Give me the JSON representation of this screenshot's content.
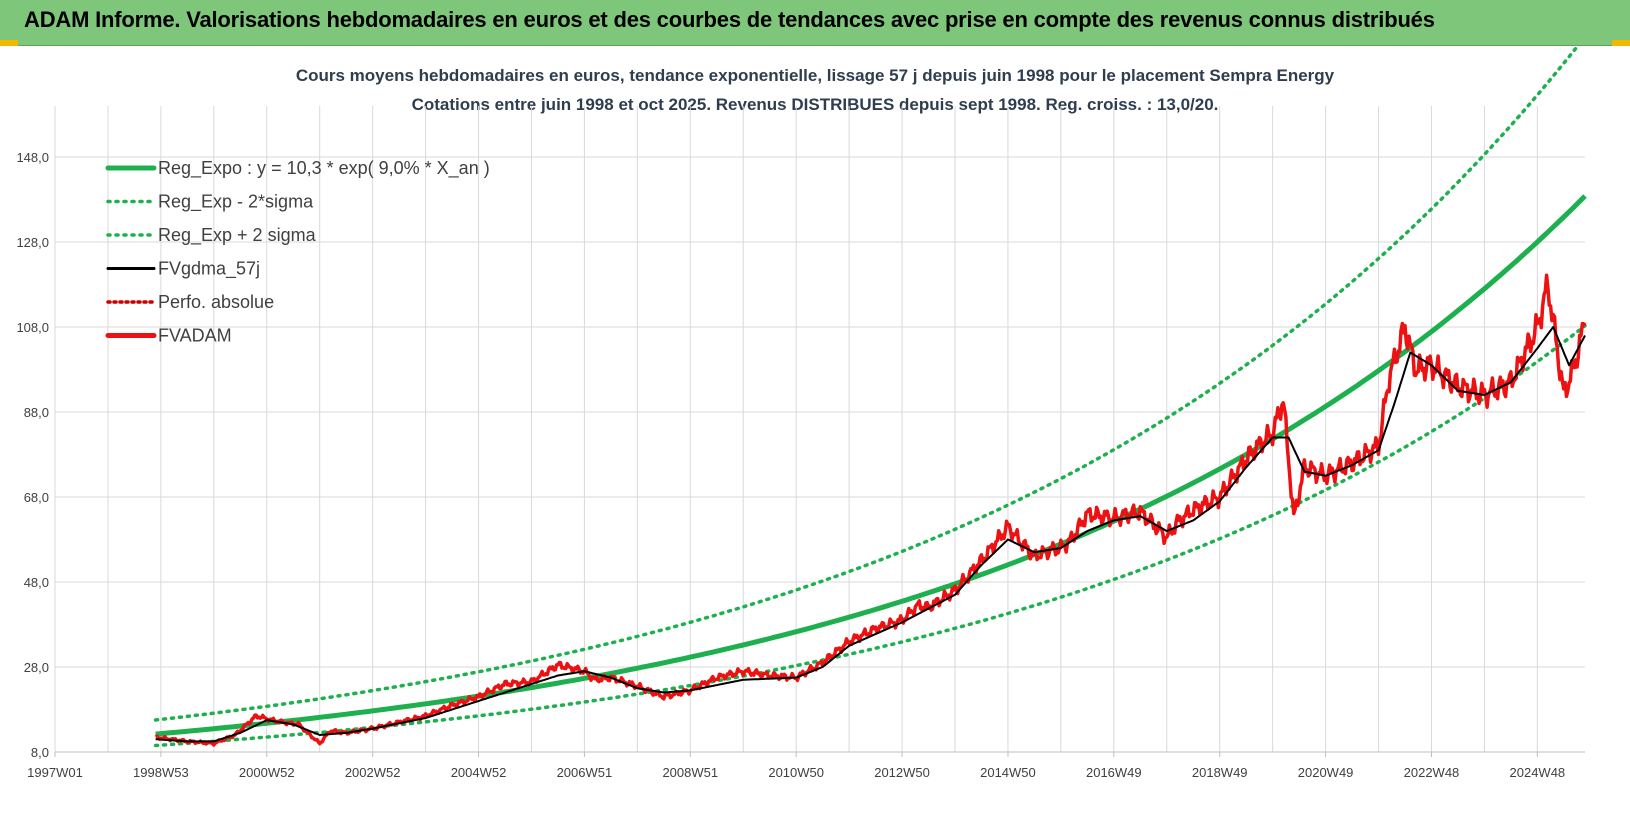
{
  "banner": {
    "title": "ADAM Informe. Valorisations hebdomadaires en euros et des courbes de tendances avec prise en compte des revenus connus distribués"
  },
  "colors": {
    "banner_bg": "#7ec77a",
    "trend": "#1eb04f",
    "price": "#ee1111",
    "smooth": "#000000",
    "perfo": "#cc0000",
    "grid": "#d9d9d9"
  },
  "chart_data": {
    "type": "line",
    "title": "Cours moyens hebdomadaires en euros, tendance exponentielle, lissage 57 j depuis juin 1998 pour le placement Sempra Energy",
    "subtitle": "Cotations entre juin 1998 et oct 2025. Revenus DISTRIBUES depuis sept 1998. Reg. croiss. : 13,0/20.",
    "xlabel": "",
    "ylabel": "",
    "x_unit": "years since 1997W01",
    "xlim": [
      0,
      28.9
    ],
    "ylim": [
      8,
      160
    ],
    "y_ticks": [
      "8,0",
      "28,0",
      "48,0",
      "68,0",
      "88,0",
      "108,0",
      "128,0",
      "148,0"
    ],
    "y_tick_values": [
      8,
      28,
      48,
      68,
      88,
      108,
      128,
      148
    ],
    "x_ticks": [
      "1997W01",
      "1998W53",
      "2000W52",
      "2002W52",
      "2004W52",
      "2006W51",
      "2008W51",
      "2010W50",
      "2012W50",
      "2014W50",
      "2016W49",
      "2018W49",
      "2020W49",
      "2022W48",
      "2024W48"
    ],
    "x_tick_values": [
      0,
      2,
      4,
      6,
      8,
      10,
      12,
      14,
      16,
      18,
      20,
      22,
      24,
      26,
      28
    ],
    "legend": {
      "position": "top-left",
      "entries": [
        {
          "label": "Reg_Expo : y = 10,3 * exp( 9,0% *  X_an )",
          "style": "solid-thick",
          "color": "#1eb04f"
        },
        {
          "label": "Reg_Exp - 2*sigma",
          "style": "dotted",
          "color": "#1eb04f"
        },
        {
          "label": "Reg_Exp + 2 sigma",
          "style": "dotted",
          "color": "#1eb04f"
        },
        {
          "label": "FVgdma_57j",
          "style": "solid",
          "color": "#000000"
        },
        {
          "label": "Perfo. absolue",
          "style": "dotted",
          "color": "#cc0000"
        },
        {
          "label": "FVADAM",
          "style": "solid-thick",
          "color": "#ee1111"
        }
      ]
    },
    "regression": {
      "a": 10.3,
      "rate": 0.09,
      "x_start": 1.9,
      "x_end": 28.9
    },
    "sigma_bands": {
      "lower_factor": 0.78,
      "upper_factor": 1.27
    },
    "series": [
      {
        "name": "FVADAM",
        "x": [
          1.9,
          2.2,
          2.5,
          3.0,
          3.4,
          3.8,
          4.1,
          4.3,
          4.6,
          5.0,
          5.2,
          5.5,
          6.0,
          6.5,
          7.0,
          7.5,
          8.0,
          8.5,
          9.0,
          9.5,
          10.0,
          10.2,
          10.5,
          11.0,
          11.2,
          11.5,
          12.0,
          12.5,
          13.0,
          13.5,
          14.0,
          14.5,
          15.0,
          15.5,
          16.0,
          16.3,
          16.5,
          17.0,
          17.5,
          18.0,
          18.2,
          18.5,
          18.8,
          19.0,
          19.2,
          19.5,
          20.0,
          20.5,
          21.0,
          21.2,
          21.5,
          22.0,
          22.5,
          22.8,
          23.0,
          23.2,
          23.4,
          23.6,
          24.0,
          24.5,
          25.0,
          25.2,
          25.5,
          25.7,
          26.0,
          26.5,
          27.0,
          27.5,
          28.0,
          28.2,
          28.5,
          28.7,
          28.9
        ],
        "values": [
          11.5,
          11.0,
          10.5,
          10.0,
          12.0,
          16.5,
          15.5,
          15.0,
          14.5,
          10.0,
          13.0,
          12.5,
          13.5,
          15.0,
          16.5,
          19.0,
          21.0,
          24.0,
          24.5,
          28.5,
          27.0,
          25.0,
          25.5,
          23.5,
          22.5,
          21.0,
          22.5,
          25.5,
          27.0,
          26.0,
          25.5,
          29.0,
          34.0,
          37.0,
          39.0,
          42.5,
          42.0,
          46.0,
          53.0,
          61.0,
          58.0,
          54.0,
          55.5,
          56.0,
          58.0,
          64.0,
          63.0,
          64.5,
          58.5,
          62.0,
          65.0,
          68.0,
          77.0,
          81.0,
          83.0,
          91.0,
          63.0,
          75.0,
          73.0,
          76.0,
          80.0,
          96.0,
          108.0,
          98.0,
          99.0,
          94.0,
          92.0,
          95.0,
          108.0,
          118.0,
          92.0,
          99.0,
          109.0
        ]
      },
      {
        "name": "FVgdma_57j",
        "x": [
          1.9,
          2.5,
          3.0,
          3.5,
          4.0,
          4.5,
          5.0,
          5.5,
          6.0,
          7.0,
          8.0,
          9.0,
          9.5,
          10.0,
          10.5,
          11.0,
          11.5,
          12.0,
          13.0,
          14.0,
          14.5,
          15.0,
          16.0,
          17.0,
          17.5,
          18.0,
          18.5,
          19.0,
          19.5,
          20.0,
          20.5,
          21.0,
          21.5,
          22.0,
          22.5,
          23.0,
          23.3,
          23.6,
          24.0,
          24.5,
          25.0,
          25.3,
          25.6,
          26.0,
          26.5,
          27.0,
          27.5,
          28.0,
          28.3,
          28.6,
          28.9
        ],
        "values": [
          11.0,
          10.5,
          10.5,
          12.5,
          15.5,
          14.5,
          12.0,
          12.5,
          13.5,
          16.0,
          20.0,
          24.0,
          26.0,
          27.0,
          25.5,
          23.0,
          22.0,
          22.5,
          25.0,
          25.5,
          28.0,
          33.0,
          38.5,
          45.0,
          52.0,
          58.0,
          55.0,
          56.0,
          60.0,
          62.5,
          63.5,
          60.0,
          62.5,
          67.0,
          75.0,
          82.0,
          82.0,
          74.0,
          73.0,
          75.5,
          79.0,
          90.0,
          102.0,
          99.0,
          93.0,
          92.0,
          95.0,
          103.0,
          108.0,
          99.0,
          106.0
        ]
      }
    ]
  }
}
